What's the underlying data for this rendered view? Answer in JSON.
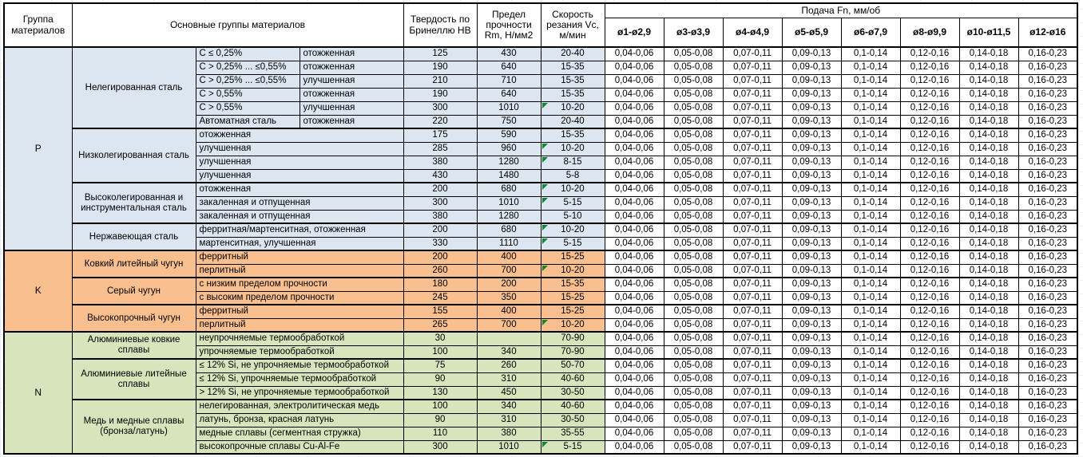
{
  "sheet": {
    "header": {
      "col_group": "Группа материалов",
      "col_main": "Основные группы материалов",
      "col_hb": "Твердость по Бринеллю HB",
      "col_rm": "Предел прочности Rm, Н/мм2",
      "col_vc": "Скорость резания Vc, м/мин",
      "feed_title": "Подача Fn, мм/об",
      "feed_cols": [
        "ø1-ø2,9",
        "ø3-ø3,9",
        "ø4-ø4,9",
        "ø5-ø5,9",
        "ø6-ø7,9",
        "ø8-ø9,9",
        "ø10-ø11,5",
        "ø12-ø16"
      ]
    },
    "feed_values": [
      "0,04-0,06",
      "0,05-0,08",
      "0,07-0,11",
      "0,09-0,13",
      "0,1-0,14",
      "0,12-0,16",
      "0,14-0,18",
      "0,16-0,23"
    ],
    "colors": {
      "P": "#dce6f1",
      "K": "#fabf8f",
      "N": "#d8e4bc",
      "flag": "#0c8a2f"
    },
    "groups": [
      {
        "code": "P",
        "blocks": [
          {
            "name": "Нелегированная сталь",
            "rows": [
              {
                "c1": "C ≤ 0,25%",
                "c2": "отожженная",
                "hb": "125",
                "rm": "430",
                "vc": "20-40"
              },
              {
                "c1": "C > 0,25% ... ≤0,55%",
                "c2": "отожженная",
                "hb": "190",
                "rm": "640",
                "vc": "15-35"
              },
              {
                "c1": "C > 0,25% ... ≤0,55%",
                "c2": "улучшенная",
                "hb": "210",
                "rm": "710",
                "vc": "15-35"
              },
              {
                "c1": "C > 0,55%",
                "c2": "отожженная",
                "hb": "190",
                "rm": "640",
                "vc": "15-35"
              },
              {
                "c1": "C > 0,55%",
                "c2": "улучшенная",
                "hb": "300",
                "rm": "1010",
                "vc": "10-20",
                "flag": true
              },
              {
                "c1": "Автоматная сталь",
                "c2": "отожженная",
                "hb": "220",
                "rm": "750",
                "vc": "20-40"
              }
            ]
          },
          {
            "name": "Низколегированная сталь",
            "rows": [
              {
                "c": "отожженная",
                "hb": "175",
                "rm": "590",
                "vc": "15-35"
              },
              {
                "c": "улучшенная",
                "hb": "285",
                "rm": "960",
                "vc": "10-20",
                "flag": true
              },
              {
                "c": "улучшенная",
                "hb": "380",
                "rm": "1280",
                "vc": "8-15",
                "flag": true
              },
              {
                "c": "улучшенная",
                "hb": "430",
                "rm": "1480",
                "vc": "5-8"
              }
            ]
          },
          {
            "name": "Высоколегированная и инструментальная сталь",
            "rows": [
              {
                "c": "отожженная",
                "hb": "200",
                "rm": "680",
                "vc": "10-20",
                "flag": true
              },
              {
                "c": "закаленная и отпущенная",
                "hb": "300",
                "rm": "1010",
                "vc": "5-15",
                "flag": true
              },
              {
                "c": "закаленная и отпущенная",
                "hb": "380",
                "rm": "1280",
                "vc": "5-10"
              }
            ]
          },
          {
            "name": "Нержавеющая сталь",
            "rows": [
              {
                "c": "ферритная/мартенситная, отожженная",
                "hb": "200",
                "rm": "680",
                "vc": "10-20",
                "flag": true
              },
              {
                "c": "мартенситная, улучшенная",
                "hb": "330",
                "rm": "1110",
                "vc": "5-15",
                "flag": true
              }
            ]
          }
        ]
      },
      {
        "code": "K",
        "blocks": [
          {
            "name": "Ковкий литейный чугун",
            "rows": [
              {
                "c": "ферритный",
                "hb": "200",
                "rm": "400",
                "vc": "15-25"
              },
              {
                "c": "перлитный",
                "hb": "260",
                "rm": "700",
                "vc": "10-20",
                "flag": true
              }
            ]
          },
          {
            "name": "Серый чугун",
            "rows": [
              {
                "c": "с низким пределом прочности",
                "hb": "180",
                "rm": "200",
                "vc": "15-35"
              },
              {
                "c": "с высоким пределом прочности",
                "hb": "245",
                "rm": "350",
                "vc": "15-25"
              }
            ]
          },
          {
            "name": "Высокопрочный чугун",
            "rows": [
              {
                "c": "ферритный",
                "hb": "155",
                "rm": "400",
                "vc": "15-25"
              },
              {
                "c": "перлитный",
                "hb": "265",
                "rm": "700",
                "vc": "10-20",
                "flag": true
              }
            ]
          }
        ]
      },
      {
        "code": "N",
        "blocks": [
          {
            "name": "Алюминиевые ковкие сплавы",
            "rows": [
              {
                "c": "неупрочняемые термообработкой",
                "hb": "30",
                "rm": "",
                "vc": "70-90"
              },
              {
                "c": "упрочняемые термообработкой",
                "hb": "100",
                "rm": "340",
                "vc": "70-90"
              }
            ]
          },
          {
            "name": "Алюминиевые литейные сплавы",
            "rows": [
              {
                "c": "≤ 12% Si, не упрочняемые термообработкой",
                "hb": "75",
                "rm": "260",
                "vc": "50-70"
              },
              {
                "c": "≤ 12% Si, упрочняемые термообработкой",
                "hb": "90",
                "rm": "310",
                "vc": "40-60"
              },
              {
                "c": "> 12% Si, не упрочняемые термообработкой",
                "hb": "130",
                "rm": "450",
                "vc": "30-50"
              }
            ]
          },
          {
            "name": "Медь и медные сплавы (бронза/латунь)",
            "rows": [
              {
                "c": "нелегированная, электролитическая медь",
                "hb": "100",
                "rm": "340",
                "vc": "40-60"
              },
              {
                "c": "латунь, бронза, красная латунь",
                "hb": "90",
                "rm": "310",
                "vc": "30-50"
              },
              {
                "c": "медные сплавы (сегментная стружка)",
                "hb": "110",
                "rm": "380",
                "vc": "35-55"
              },
              {
                "c": "высокопрочные сплавы Cu-Al-Fe",
                "hb": "300",
                "rm": "1010",
                "vc": "5-15",
                "flag": true
              }
            ]
          }
        ]
      }
    ]
  }
}
